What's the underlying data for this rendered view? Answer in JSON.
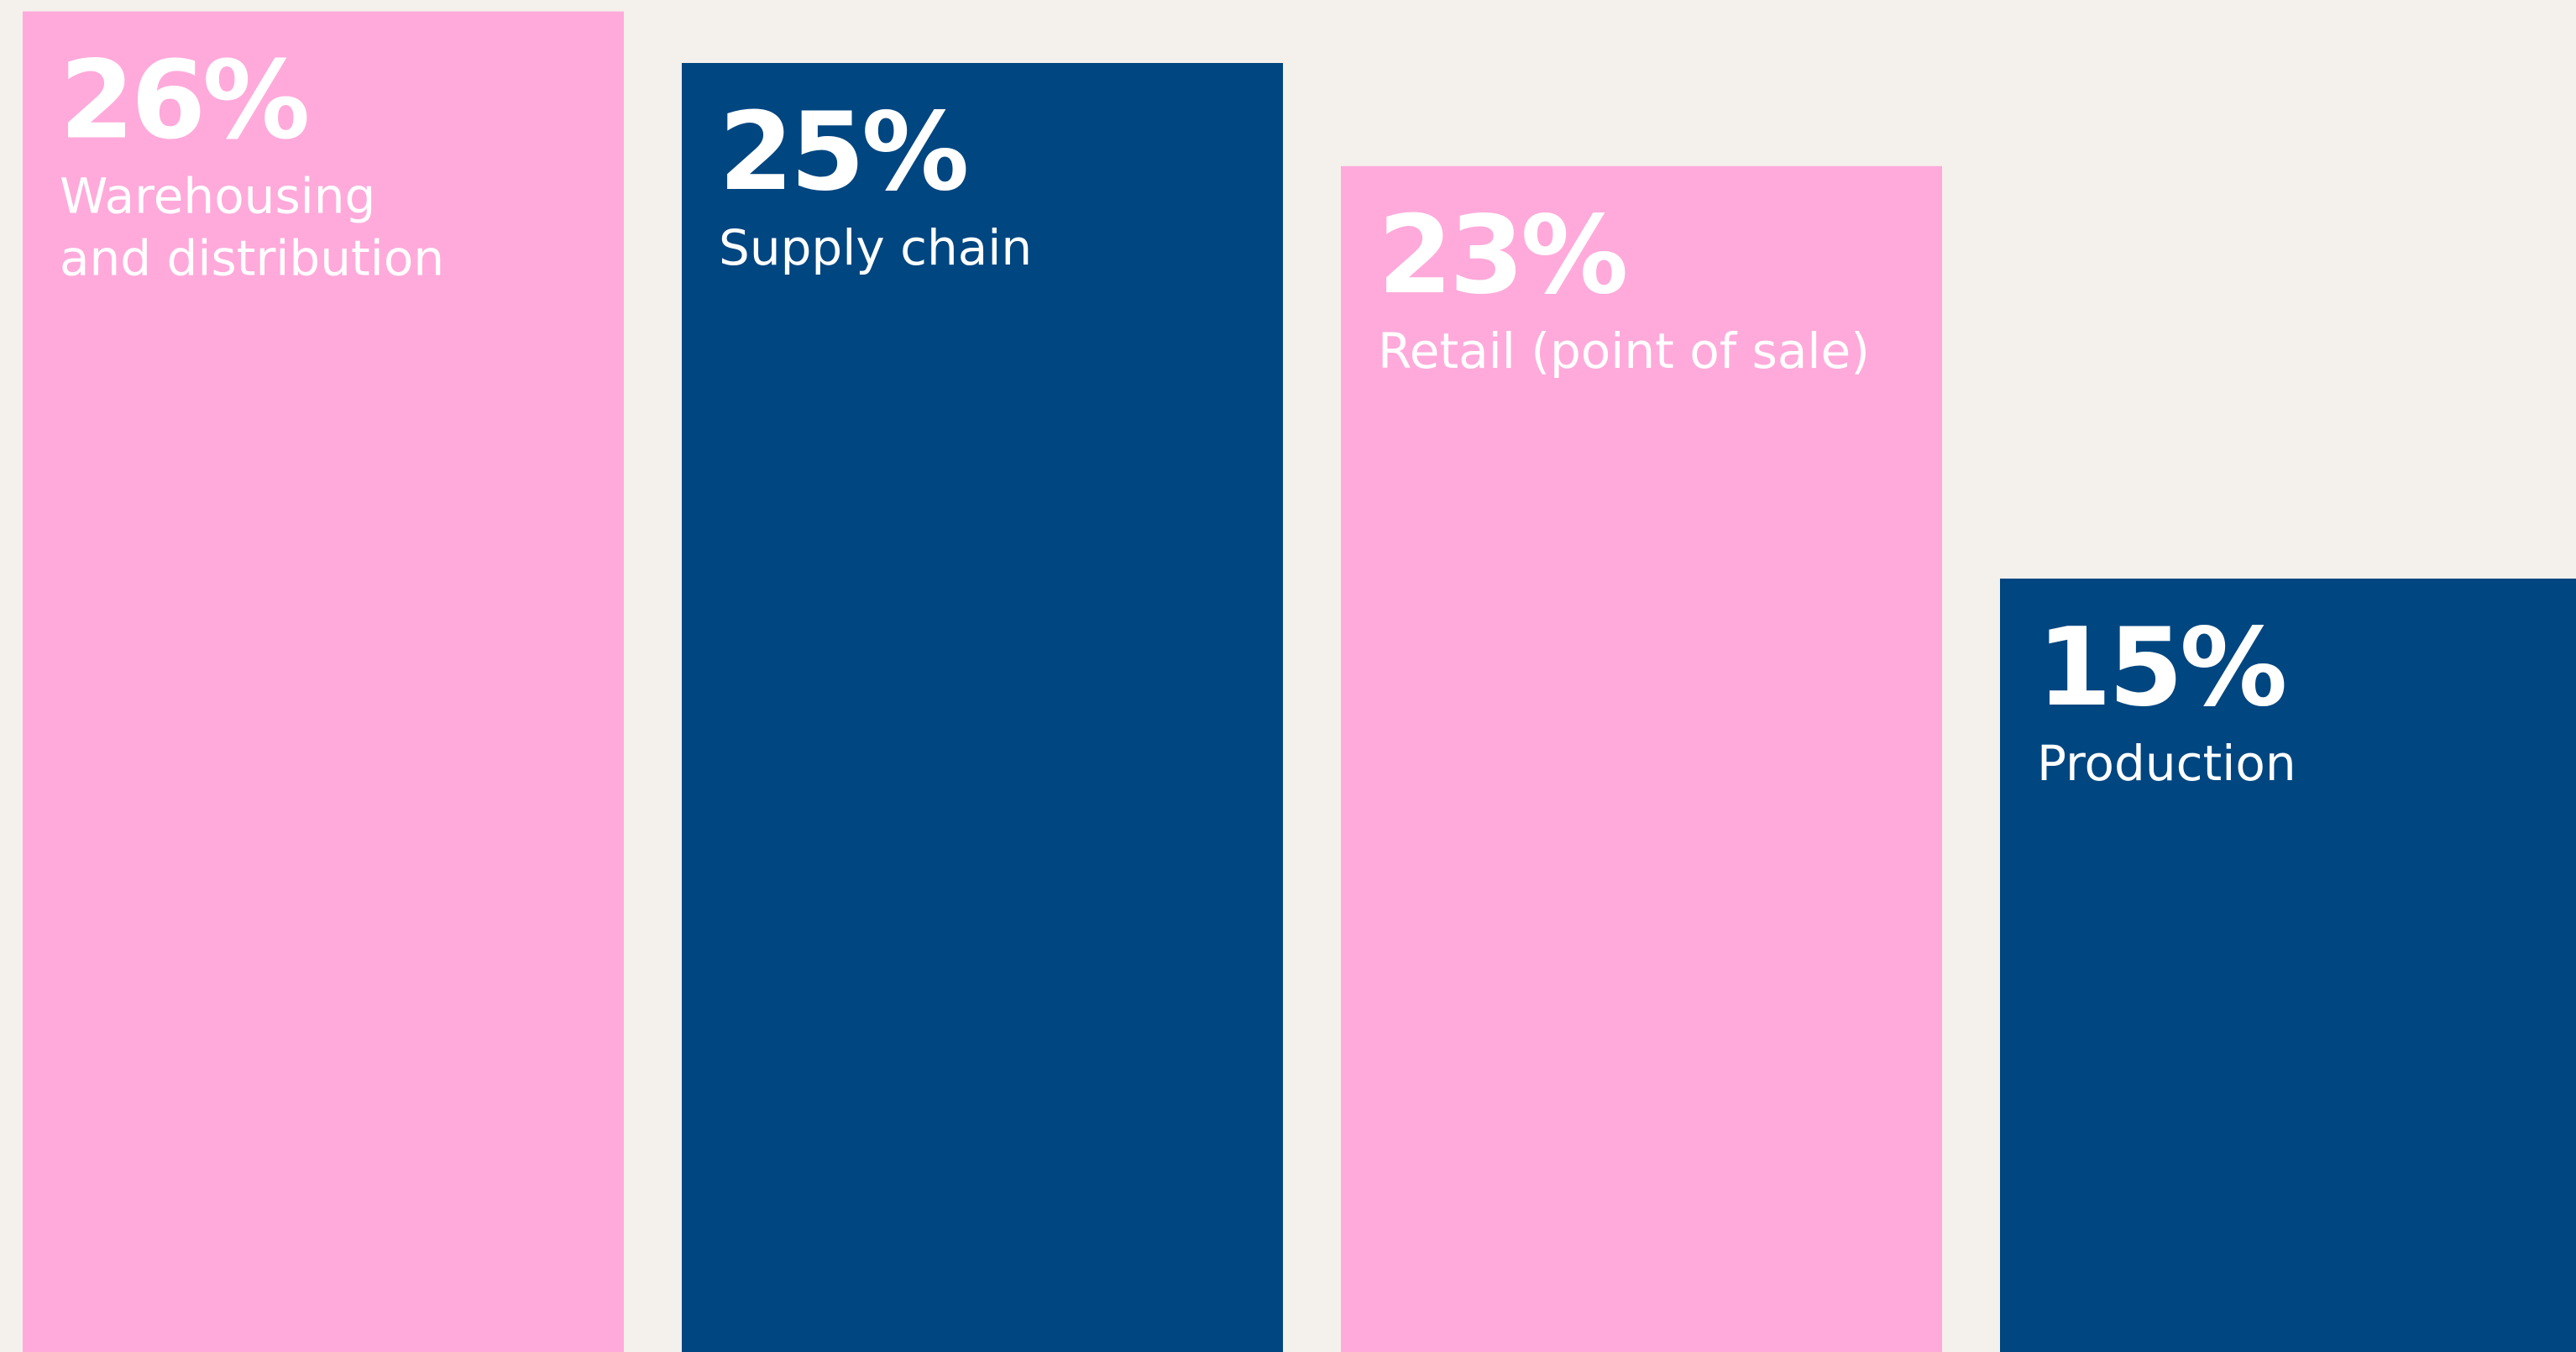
{
  "chart_data": {
    "type": "bar",
    "categories": [
      "Warehousing and distribution",
      "Supply chain",
      "Retail (point of sale)",
      "Production"
    ],
    "values": [
      26,
      25,
      23,
      15
    ],
    "value_labels": [
      "26%",
      "25%",
      "23%",
      "15%"
    ],
    "colors": [
      "#ffaadb",
      "#004680",
      "#ffaadb",
      "#004680"
    ]
  }
}
